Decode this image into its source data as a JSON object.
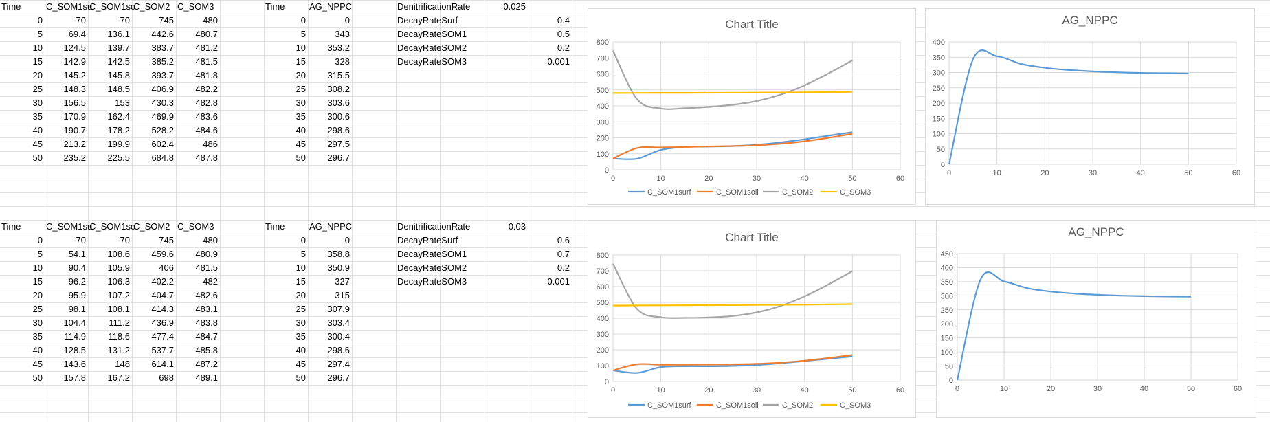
{
  "blocks": [
    {
      "som_headers": [
        "Time",
        "C_SOM1su",
        "C_SOM1sc",
        "C_SOM2",
        "C_SOM3"
      ],
      "som_rows": [
        [
          "0",
          "70",
          "70",
          "745",
          "480"
        ],
        [
          "5",
          "69.4",
          "136.1",
          "442.6",
          "480.7"
        ],
        [
          "10",
          "124.5",
          "139.7",
          "383.7",
          "481.2"
        ],
        [
          "15",
          "142.9",
          "142.5",
          "385.2",
          "481.5"
        ],
        [
          "20",
          "145.2",
          "145.8",
          "393.7",
          "481.8"
        ],
        [
          "25",
          "148.3",
          "148.5",
          "406.9",
          "482.2"
        ],
        [
          "30",
          "156.5",
          "153",
          "430.3",
          "482.8"
        ],
        [
          "35",
          "170.9",
          "162.4",
          "469.9",
          "483.6"
        ],
        [
          "40",
          "190.7",
          "178.2",
          "528.2",
          "484.6"
        ],
        [
          "45",
          "213.2",
          "199.9",
          "602.4",
          "486"
        ],
        [
          "50",
          "235.2",
          "225.5",
          "684.8",
          "487.8"
        ]
      ],
      "npp_headers": [
        "Time",
        "AG_NPPC"
      ],
      "npp_rows": [
        [
          "0",
          "0"
        ],
        [
          "5",
          "343"
        ],
        [
          "10",
          "353.2"
        ],
        [
          "15",
          "328"
        ],
        [
          "20",
          "315.5"
        ],
        [
          "25",
          "308.2"
        ],
        [
          "30",
          "303.6"
        ],
        [
          "35",
          "300.6"
        ],
        [
          "40",
          "298.6"
        ],
        [
          "45",
          "297.5"
        ],
        [
          "50",
          "296.7"
        ]
      ],
      "params": [
        {
          "name": "DenitrificationRate",
          "value": "0.025"
        },
        {
          "name": "DecayRateSurf",
          "value": "0.4"
        },
        {
          "name": "DecayRateSOM1",
          "value": "0.5"
        },
        {
          "name": "DecayRateSOM2",
          "value": "0.2"
        },
        {
          "name": "DecayRateSOM3",
          "value": "0.001"
        }
      ]
    },
    {
      "som_headers": [
        "Time",
        "C_SOM1su",
        "C_SOM1sc",
        "C_SOM2",
        "C_SOM3"
      ],
      "som_rows": [
        [
          "0",
          "70",
          "70",
          "745",
          "480"
        ],
        [
          "5",
          "54.1",
          "108.6",
          "459.6",
          "480.9"
        ],
        [
          "10",
          "90.4",
          "105.9",
          "406",
          "481.5"
        ],
        [
          "15",
          "96.2",
          "106.3",
          "402.2",
          "482"
        ],
        [
          "20",
          "95.9",
          "107.2",
          "404.7",
          "482.6"
        ],
        [
          "25",
          "98.1",
          "108.1",
          "414.3",
          "483.1"
        ],
        [
          "30",
          "104.4",
          "111.2",
          "436.9",
          "483.8"
        ],
        [
          "35",
          "114.9",
          "118.6",
          "477.4",
          "484.7"
        ],
        [
          "40",
          "128.5",
          "131.2",
          "537.7",
          "485.8"
        ],
        [
          "45",
          "143.6",
          "148",
          "614.1",
          "487.2"
        ],
        [
          "50",
          "157.8",
          "167.2",
          "698",
          "489.1"
        ]
      ],
      "npp_headers": [
        "Time",
        "AG_NPPC"
      ],
      "npp_rows": [
        [
          "0",
          "0"
        ],
        [
          "5",
          "358.8"
        ],
        [
          "10",
          "350.9"
        ],
        [
          "15",
          "327"
        ],
        [
          "20",
          "315"
        ],
        [
          "25",
          "307.9"
        ],
        [
          "30",
          "303.4"
        ],
        [
          "35",
          "300.4"
        ],
        [
          "40",
          "298.6"
        ],
        [
          "45",
          "297.4"
        ],
        [
          "50",
          "296.7"
        ]
      ],
      "params": [
        {
          "name": "DenitrificationRate",
          "value": "0.03"
        },
        {
          "name": "DecayRateSurf",
          "value": "0.6"
        },
        {
          "name": "DecayRateSOM1",
          "value": "0.7"
        },
        {
          "name": "DecayRateSOM2",
          "value": "0.2"
        },
        {
          "name": "DecayRateSOM3",
          "value": "0.001"
        }
      ]
    }
  ],
  "colors": {
    "gridline": "#e1e1e1",
    "chart_gridline": "#d9d9d9",
    "series_surf": "#5b9bd5",
    "series_soil": "#ed7d31",
    "series_som2": "#a5a5a5",
    "series_som3": "#ffc000"
  },
  "chart_data": [
    {
      "type": "line",
      "title": "Chart Title",
      "xlim": [
        0,
        60
      ],
      "ylim": [
        0,
        800
      ],
      "xticks": [
        "0",
        "10",
        "20",
        "30",
        "40",
        "50",
        "60"
      ],
      "yticks": [
        "0",
        "100",
        "200",
        "300",
        "400",
        "500",
        "600",
        "700",
        "800"
      ],
      "grid": true,
      "legend": "bottom",
      "x": [
        0,
        5,
        10,
        15,
        20,
        25,
        30,
        35,
        40,
        45,
        50
      ],
      "series": [
        {
          "name": "C_SOM1surf",
          "values": [
            70,
            69.4,
            124.5,
            142.9,
            145.2,
            148.3,
            156.5,
            170.9,
            190.7,
            213.2,
            235.2
          ]
        },
        {
          "name": "C_SOM1soil",
          "values": [
            70,
            136.1,
            139.7,
            142.5,
            145.8,
            148.5,
            153,
            162.4,
            178.2,
            199.9,
            225.5
          ]
        },
        {
          "name": "C_SOM2",
          "values": [
            745,
            442.6,
            383.7,
            385.2,
            393.7,
            406.9,
            430.3,
            469.9,
            528.2,
            602.4,
            684.8
          ]
        },
        {
          "name": "C_SOM3",
          "values": [
            480,
            480.7,
            481.2,
            481.5,
            481.8,
            482.2,
            482.8,
            483.6,
            484.6,
            486,
            487.8
          ]
        }
      ]
    },
    {
      "type": "line",
      "title": "AG_NPPC",
      "xlim": [
        0,
        60
      ],
      "ylim": [
        0,
        400
      ],
      "xticks": [
        "0",
        "10",
        "20",
        "30",
        "40",
        "50",
        "60"
      ],
      "yticks": [
        "0",
        "50",
        "100",
        "150",
        "200",
        "250",
        "300",
        "350",
        "400"
      ],
      "grid": true,
      "legend": "none",
      "x": [
        0,
        5,
        10,
        15,
        20,
        25,
        30,
        35,
        40,
        45,
        50
      ],
      "series": [
        {
          "name": "",
          "values": [
            0,
            343,
            353.2,
            328,
            315.5,
            308.2,
            303.6,
            300.6,
            298.6,
            297.5,
            296.7
          ]
        }
      ]
    },
    {
      "type": "line",
      "title": "Chart Title",
      "xlim": [
        0,
        60
      ],
      "ylim": [
        0,
        800
      ],
      "xticks": [
        "0",
        "10",
        "20",
        "30",
        "40",
        "50",
        "60"
      ],
      "yticks": [
        "0",
        "100",
        "200",
        "300",
        "400",
        "500",
        "600",
        "700",
        "800"
      ],
      "grid": true,
      "legend": "bottom",
      "x": [
        0,
        5,
        10,
        15,
        20,
        25,
        30,
        35,
        40,
        45,
        50
      ],
      "series": [
        {
          "name": "C_SOM1surf",
          "values": [
            70,
            54.1,
            90.4,
            96.2,
            95.9,
            98.1,
            104.4,
            114.9,
            128.5,
            143.6,
            157.8
          ]
        },
        {
          "name": "C_SOM1soil",
          "values": [
            70,
            108.6,
            105.9,
            106.3,
            107.2,
            108.1,
            111.2,
            118.6,
            131.2,
            148,
            167.2
          ]
        },
        {
          "name": "C_SOM2",
          "values": [
            745,
            459.6,
            406,
            402.2,
            404.7,
            414.3,
            436.9,
            477.4,
            537.7,
            614.1,
            698
          ]
        },
        {
          "name": "C_SOM3",
          "values": [
            480,
            480.9,
            481.5,
            482,
            482.6,
            483.1,
            483.8,
            484.7,
            485.8,
            487.2,
            489.1
          ]
        }
      ]
    },
    {
      "type": "line",
      "title": "AG_NPPC",
      "xlim": [
        0,
        60
      ],
      "ylim": [
        0,
        450
      ],
      "xticks": [
        "0",
        "10",
        "20",
        "30",
        "40",
        "50",
        "60"
      ],
      "yticks": [
        "0",
        "50",
        "100",
        "150",
        "200",
        "250",
        "300",
        "350",
        "400",
        "450"
      ],
      "grid": true,
      "legend": "none",
      "x": [
        0,
        5,
        10,
        15,
        20,
        25,
        30,
        35,
        40,
        45,
        50
      ],
      "series": [
        {
          "name": "",
          "values": [
            0,
            358.8,
            350.9,
            327,
            315,
            307.9,
            303.4,
            300.4,
            298.6,
            297.4,
            296.7
          ]
        }
      ]
    }
  ]
}
